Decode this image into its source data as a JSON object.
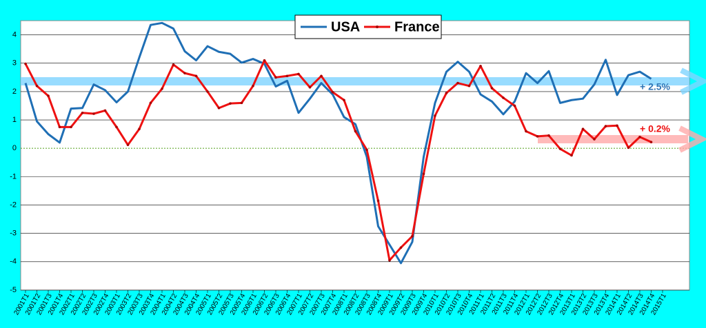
{
  "chart_data": {
    "type": "line",
    "categories": [
      "2001T1",
      "2001T2",
      "2001T3",
      "2001T4",
      "2002T1",
      "2002T2",
      "2002T3",
      "2002T4",
      "2003T1",
      "2003T2",
      "2003T3",
      "2003T4",
      "2004T1",
      "2004T2",
      "2004T3",
      "2004T4",
      "2005T1",
      "2005T2",
      "2005T3",
      "2005T4",
      "2006T1",
      "2006T2",
      "2006T3",
      "2006T4",
      "2007T1",
      "2007T2",
      "2007T3",
      "2007T4",
      "2008T1",
      "2008T2",
      "2008T3",
      "2008T4",
      "2009T1",
      "2009T2",
      "2009T3",
      "2009T4",
      "2010T1",
      "2010T2",
      "2010T3",
      "2010T4",
      "2011T1",
      "2011T2",
      "2011T3",
      "2011T4",
      "2012T1",
      "2012T2",
      "2012T3",
      "2012T4",
      "2013T1",
      "2013T2",
      "2013T3",
      "2013T4",
      "2014T1",
      "2014T2",
      "2014T3",
      "2014T4",
      "2015T1"
    ],
    "series": [
      {
        "name": "USA",
        "color": "#1f6fb5",
        "values": [
          2.3,
          0.95,
          0.5,
          0.2,
          1.4,
          1.42,
          2.25,
          2.05,
          1.62,
          2.0,
          3.2,
          4.35,
          4.42,
          4.22,
          3.42,
          3.1,
          3.6,
          3.4,
          3.33,
          3.02,
          3.15,
          2.98,
          2.18,
          2.38,
          1.25,
          1.75,
          2.3,
          1.9,
          1.1,
          0.85,
          -0.3,
          -2.75,
          -3.4,
          -4.05,
          -3.3,
          -0.3,
          1.6,
          2.7,
          3.05,
          2.7,
          1.9,
          1.65,
          1.2,
          1.65,
          2.65,
          2.3,
          2.72,
          1.6,
          1.7,
          1.75,
          2.25,
          3.12,
          1.88,
          2.58,
          2.7,
          2.45,
          null
        ]
      },
      {
        "name": "France",
        "color": "#ee1111",
        "values": [
          2.98,
          2.2,
          1.85,
          0.75,
          0.75,
          1.25,
          1.22,
          1.33,
          0.75,
          0.12,
          0.68,
          1.6,
          2.1,
          2.95,
          2.65,
          2.55,
          2.0,
          1.42,
          1.58,
          1.6,
          2.2,
          3.1,
          2.5,
          2.55,
          2.62,
          2.15,
          2.55,
          1.98,
          1.7,
          0.6,
          -0.05,
          -1.85,
          -3.95,
          -3.5,
          -3.1,
          -0.9,
          1.15,
          1.95,
          2.3,
          2.2,
          2.9,
          2.12,
          1.78,
          1.5,
          0.6,
          0.42,
          0.45,
          -0.02,
          -0.25,
          0.68,
          0.32,
          0.78,
          0.8,
          0.02,
          0.4,
          0.22,
          null
        ]
      }
    ],
    "ylim": [
      -5,
      4.5
    ],
    "yticks": [
      -5,
      -4,
      -3,
      -2,
      -1,
      0,
      1,
      2,
      3,
      4
    ],
    "grid": true,
    "annotations": [
      "+ 2.5%",
      "+ 0.2%"
    ]
  }
}
